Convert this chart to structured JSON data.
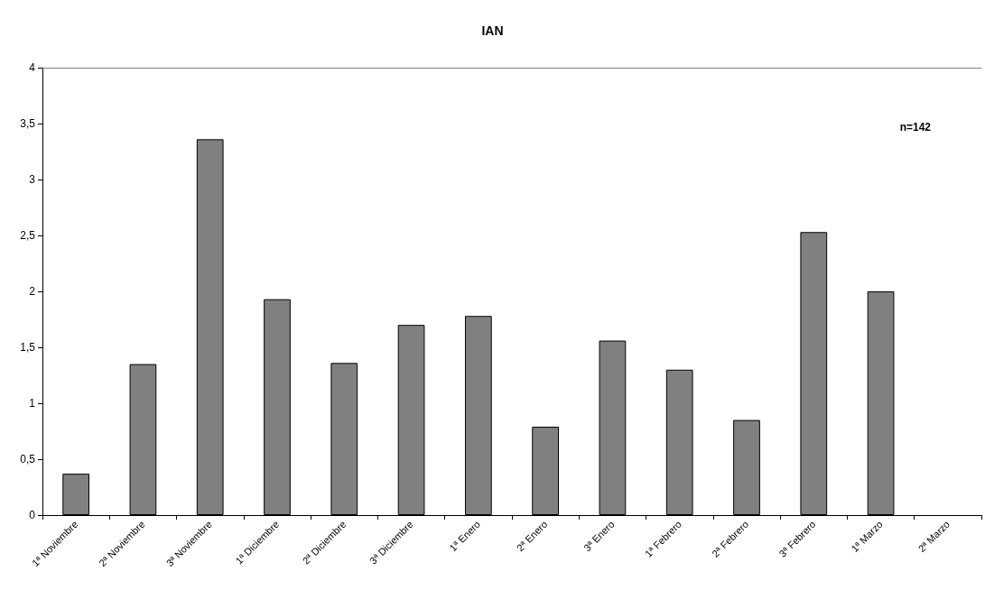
{
  "chart_data": {
    "type": "bar",
    "title": "IAN",
    "categories": [
      "1ª Noviembre",
      "2ª Noviembre",
      "3ª Noviembre",
      "1ª Diciembre",
      "2ª Diciembre",
      "3ª Diciembre",
      "1ª Enero",
      "2ª Enero",
      "3ª Enero",
      "1ª Febrero",
      "2ª Febrero",
      "3ª Febrero",
      "1ª Marzo",
      "2ª Marzo"
    ],
    "values": [
      0.37,
      1.35,
      3.36,
      1.93,
      1.36,
      1.7,
      1.78,
      0.79,
      1.56,
      1.3,
      0.85,
      2.53,
      2.0,
      null
    ],
    "color": "#808080",
    "ylim": [
      0,
      4
    ],
    "yticks": [
      0,
      {
        "value": 0.5,
        "label": "0,5"
      },
      1,
      {
        "value": 1.5,
        "label": "1,5"
      },
      2,
      {
        "value": 2.5,
        "label": "2,5"
      },
      3,
      {
        "value": 3.5,
        "label": "3,5"
      },
      4
    ],
    "grid": false,
    "annotations": [
      "n=142"
    ]
  }
}
